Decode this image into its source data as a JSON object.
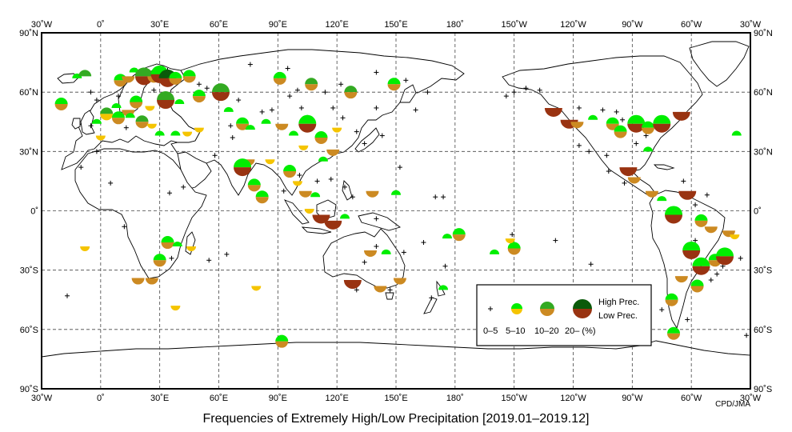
{
  "title": "Frequencies of Extremely High/Low Precipitation [2019.01–2019.12]",
  "credit": "CPD/JMA",
  "axes": {
    "lon_labels": [
      "30˚W",
      "0˚",
      "30˚E",
      "60˚E",
      "90˚E",
      "120˚E",
      "150˚E",
      "180˚",
      "150˚W",
      "120˚W",
      "90˚W",
      "60˚W",
      "30˚W"
    ],
    "lat_labels": [
      "90˚N",
      "60˚N",
      "30˚N",
      "0˚",
      "30˚S",
      "60˚S",
      "90˚S"
    ]
  },
  "legend": {
    "high_label": "High Prec.",
    "low_label": "Low Prec.",
    "classes": [
      "0–5",
      "5–10",
      "10–20",
      "20– (%)"
    ]
  },
  "colors": {
    "high": [
      "#00ee00",
      "#33aa22",
      "#0a5a0a"
    ],
    "low": [
      "#f5c400",
      "#cc8a22",
      "#993311"
    ],
    "plus": "#000000",
    "land": "#ffffff",
    "frame": "#000000",
    "grid": "#444444"
  },
  "stations": [
    [
      -12,
      67,
      0,
      "h",
      0
    ],
    [
      -8,
      68,
      1,
      "h",
      0
    ],
    [
      10,
      66,
      0,
      "h",
      1
    ],
    [
      14,
      68,
      0,
      "l",
      1
    ],
    [
      17,
      70,
      0,
      "h",
      0
    ],
    [
      22,
      68,
      1,
      "h",
      2
    ],
    [
      27,
      68,
      1,
      "h",
      1
    ],
    [
      30,
      69,
      0,
      "h",
      2
    ],
    [
      34,
      67,
      2,
      "h",
      2
    ],
    [
      38,
      67,
      0,
      "h",
      1
    ],
    [
      45,
      68,
      0,
      "h",
      1
    ],
    [
      61,
      60,
      1,
      "h",
      2
    ],
    [
      91,
      67,
      0,
      "h",
      1
    ],
    [
      107,
      64,
      1,
      "h",
      1
    ],
    [
      127,
      60,
      1,
      "h",
      1
    ],
    [
      149,
      64,
      0,
      "h",
      1
    ],
    [
      50,
      58,
      0,
      "h",
      1
    ],
    [
      40,
      54,
      0,
      "h",
      0
    ],
    [
      33,
      56,
      1,
      "l",
      2
    ],
    [
      25,
      53,
      0,
      "l",
      0
    ],
    [
      18,
      55,
      0,
      "h",
      1
    ],
    [
      14,
      51,
      0,
      "l",
      1
    ],
    [
      8,
      52,
      0,
      "h",
      0
    ],
    [
      3,
      49,
      1,
      "l",
      0
    ],
    [
      -2,
      44,
      0,
      "h",
      0
    ],
    [
      0,
      38,
      0,
      "l",
      0
    ],
    [
      9,
      47,
      0,
      "h",
      1
    ],
    [
      15,
      47,
      0,
      "h",
      0
    ],
    [
      21,
      45,
      1,
      "h",
      1
    ],
    [
      26,
      44,
      0,
      "l",
      0
    ],
    [
      30,
      38,
      0,
      "h",
      0
    ],
    [
      38,
      38,
      0,
      "h",
      0
    ],
    [
      44,
      40,
      0,
      "l",
      0
    ],
    [
      50,
      42,
      0,
      "l",
      0
    ],
    [
      65,
      50,
      0,
      "h",
      0
    ],
    [
      72,
      44,
      0,
      "h",
      1
    ],
    [
      76,
      41,
      0,
      "h",
      0
    ],
    [
      84,
      44,
      0,
      "h",
      0
    ],
    [
      92,
      44,
      0,
      "l",
      1
    ],
    [
      98,
      38,
      0,
      "h",
      0
    ],
    [
      105,
      46,
      0,
      "h",
      0
    ],
    [
      112,
      37,
      0,
      "h",
      1
    ],
    [
      120,
      42,
      0,
      "l",
      0
    ],
    [
      118,
      31,
      0,
      "l",
      1
    ],
    [
      113,
      25,
      0,
      "h",
      0
    ],
    [
      103,
      33,
      0,
      "l",
      0
    ],
    [
      96,
      20,
      0,
      "h",
      1
    ],
    [
      86,
      26,
      0,
      "l",
      0
    ],
    [
      75,
      26,
      0,
      "l",
      1
    ],
    [
      72,
      22,
      0,
      "h",
      2
    ],
    [
      78,
      13,
      0,
      "h",
      1
    ],
    [
      82,
      7,
      0,
      "h",
      1
    ],
    [
      100,
      15,
      0,
      "l",
      0
    ],
    [
      104,
      10,
      0,
      "l",
      1
    ],
    [
      109,
      7,
      0,
      "h",
      0
    ],
    [
      106,
      1,
      0,
      "l",
      0
    ],
    [
      112,
      -2,
      0,
      "l",
      2
    ],
    [
      118,
      -5,
      0,
      "l",
      2
    ],
    [
      124,
      -4,
      0,
      "h",
      0
    ],
    [
      138,
      10,
      0,
      "l",
      1
    ],
    [
      150,
      8,
      0,
      "h",
      0
    ],
    [
      137,
      -20,
      0,
      "l",
      1
    ],
    [
      128,
      -35,
      0,
      "l",
      2
    ],
    [
      142,
      -38,
      0,
      "l",
      1
    ],
    [
      152,
      -34,
      0,
      "l",
      1
    ],
    [
      145,
      -22,
      0,
      "h",
      0
    ],
    [
      174,
      -40,
      0,
      "h",
      0
    ],
    [
      176,
      -14,
      0,
      "h",
      0
    ],
    [
      182,
      -12,
      0,
      "h",
      1
    ],
    [
      -160,
      -22,
      0,
      "h",
      0
    ],
    [
      -150,
      -19,
      0,
      "h",
      1
    ],
    [
      -152,
      -14,
      0,
      "l",
      0
    ],
    [
      -130,
      52,
      0,
      "l",
      2
    ],
    [
      -122,
      46,
      0,
      "l",
      2
    ],
    [
      -118,
      45,
      0,
      "l",
      1
    ],
    [
      -110,
      46,
      0,
      "h",
      0
    ],
    [
      -100,
      44,
      0,
      "h",
      1
    ],
    [
      -96,
      40,
      0,
      "h",
      1
    ],
    [
      -88,
      44,
      0,
      "h",
      2
    ],
    [
      -82,
      42,
      0,
      "h",
      1
    ],
    [
      -75,
      44,
      0,
      "h",
      2
    ],
    [
      -65,
      50,
      0,
      "l",
      2
    ],
    [
      -82,
      30,
      0,
      "h",
      0
    ],
    [
      -92,
      22,
      0,
      "l",
      2
    ],
    [
      -89,
      17,
      0,
      "l",
      1
    ],
    [
      -80,
      10,
      0,
      "l",
      1
    ],
    [
      -75,
      5,
      0,
      "h",
      0
    ],
    [
      -69,
      -2,
      0,
      "h",
      2
    ],
    [
      -62,
      10,
      0,
      "l",
      2
    ],
    [
      -55,
      -5,
      0,
      "h",
      1
    ],
    [
      -50,
      -8,
      0,
      "l",
      1
    ],
    [
      -41,
      -10,
      0,
      "l",
      1
    ],
    [
      -38,
      -12,
      0,
      "l",
      0
    ],
    [
      -60,
      -20,
      0,
      "h",
      2
    ],
    [
      -55,
      -28,
      0,
      "h",
      2
    ],
    [
      -48,
      -25,
      0,
      "h",
      1
    ],
    [
      -43,
      -23,
      0,
      "h",
      2
    ],
    [
      -65,
      -33,
      0,
      "l",
      1
    ],
    [
      -57,
      -38,
      0,
      "h",
      1
    ],
    [
      -70,
      -45,
      0,
      "h",
      1
    ],
    [
      -69,
      -62,
      0,
      "h",
      1
    ],
    [
      -8,
      -18,
      0,
      "l",
      0
    ],
    [
      19,
      -34,
      0,
      "l",
      1
    ],
    [
      26,
      -34,
      0,
      "l",
      1
    ],
    [
      30,
      -25,
      0,
      "h",
      1
    ],
    [
      34,
      -16,
      0,
      "h",
      1
    ],
    [
      39,
      -18,
      0,
      "h",
      0
    ],
    [
      46,
      -18,
      0,
      "l",
      0
    ],
    [
      38,
      -48,
      0,
      "l",
      0
    ],
    [
      79,
      -38,
      0,
      "l",
      0
    ],
    [
      92,
      -66,
      0,
      "h",
      1
    ],
    [
      105,
      44,
      0,
      "h",
      2
    ],
    [
      -37,
      38,
      0,
      "h",
      0
    ],
    [
      -20,
      54,
      0,
      "h",
      1
    ]
  ],
  "plus_marks": [
    [
      18,
      71
    ],
    [
      34,
      71
    ],
    [
      76,
      74
    ],
    [
      95,
      72
    ],
    [
      100,
      61
    ],
    [
      114,
      60
    ],
    [
      118,
      52
    ],
    [
      96,
      58
    ],
    [
      140,
      52
    ],
    [
      70,
      56
    ],
    [
      54,
      62
    ],
    [
      -5,
      60
    ],
    [
      -2,
      56
    ],
    [
      9,
      58
    ],
    [
      27,
      61
    ],
    [
      50,
      64
    ],
    [
      122,
      64
    ],
    [
      140,
      70
    ],
    [
      155,
      66
    ],
    [
      166,
      60
    ],
    [
      160,
      51
    ],
    [
      -150,
      60
    ],
    [
      -154,
      58
    ],
    [
      -144,
      62
    ],
    [
      -137,
      61
    ],
    [
      -117,
      52
    ],
    [
      -105,
      51
    ],
    [
      -98,
      50
    ],
    [
      -95,
      46
    ],
    [
      -83,
      38
    ],
    [
      -88,
      34
    ],
    [
      -103,
      28
    ],
    [
      -112,
      30
    ],
    [
      -117,
      33
    ],
    [
      -102,
      20
    ],
    [
      -94,
      14
    ],
    [
      -64,
      15
    ],
    [
      -52,
      8
    ],
    [
      -58,
      3
    ],
    [
      -58,
      -15
    ],
    [
      -47,
      -32
    ],
    [
      -62,
      -55
    ],
    [
      -75,
      -50
    ],
    [
      -32,
      -63
    ],
    [
      -50,
      -35
    ],
    [
      -44,
      -28
    ],
    [
      -35,
      -24
    ],
    [
      -111,
      -27
    ],
    [
      -129,
      -15
    ],
    [
      175,
      -28
    ],
    [
      168,
      -44
    ],
    [
      164,
      -16
    ],
    [
      170,
      7
    ],
    [
      174,
      7
    ],
    [
      -151,
      -12
    ],
    [
      140,
      -18
    ],
    [
      134,
      -26
    ],
    [
      130,
      -40
    ],
    [
      154,
      -21
    ],
    [
      147,
      -40
    ],
    [
      93,
      10
    ],
    [
      101,
      18
    ],
    [
      110,
      15
    ],
    [
      124,
      12
    ],
    [
      128,
      7
    ],
    [
      140,
      -4
    ],
    [
      152,
      22
    ],
    [
      134,
      34
    ],
    [
      130,
      40
    ],
    [
      143,
      38
    ],
    [
      123,
      47
    ],
    [
      102,
      52
    ],
    [
      87,
      51
    ],
    [
      66,
      43
    ],
    [
      58,
      28
    ],
    [
      42,
      12
    ],
    [
      35,
      9
    ],
    [
      5,
      14
    ],
    [
      -10,
      22
    ],
    [
      12,
      -8
    ],
    [
      -17,
      -43
    ],
    [
      64,
      -22
    ],
    [
      55,
      -25
    ],
    [
      36,
      -24
    ],
    [
      -2,
      30
    ],
    [
      -5,
      43
    ],
    [
      13,
      42
    ],
    [
      67,
      37
    ],
    [
      82,
      50
    ],
    [
      117,
      16
    ]
  ]
}
